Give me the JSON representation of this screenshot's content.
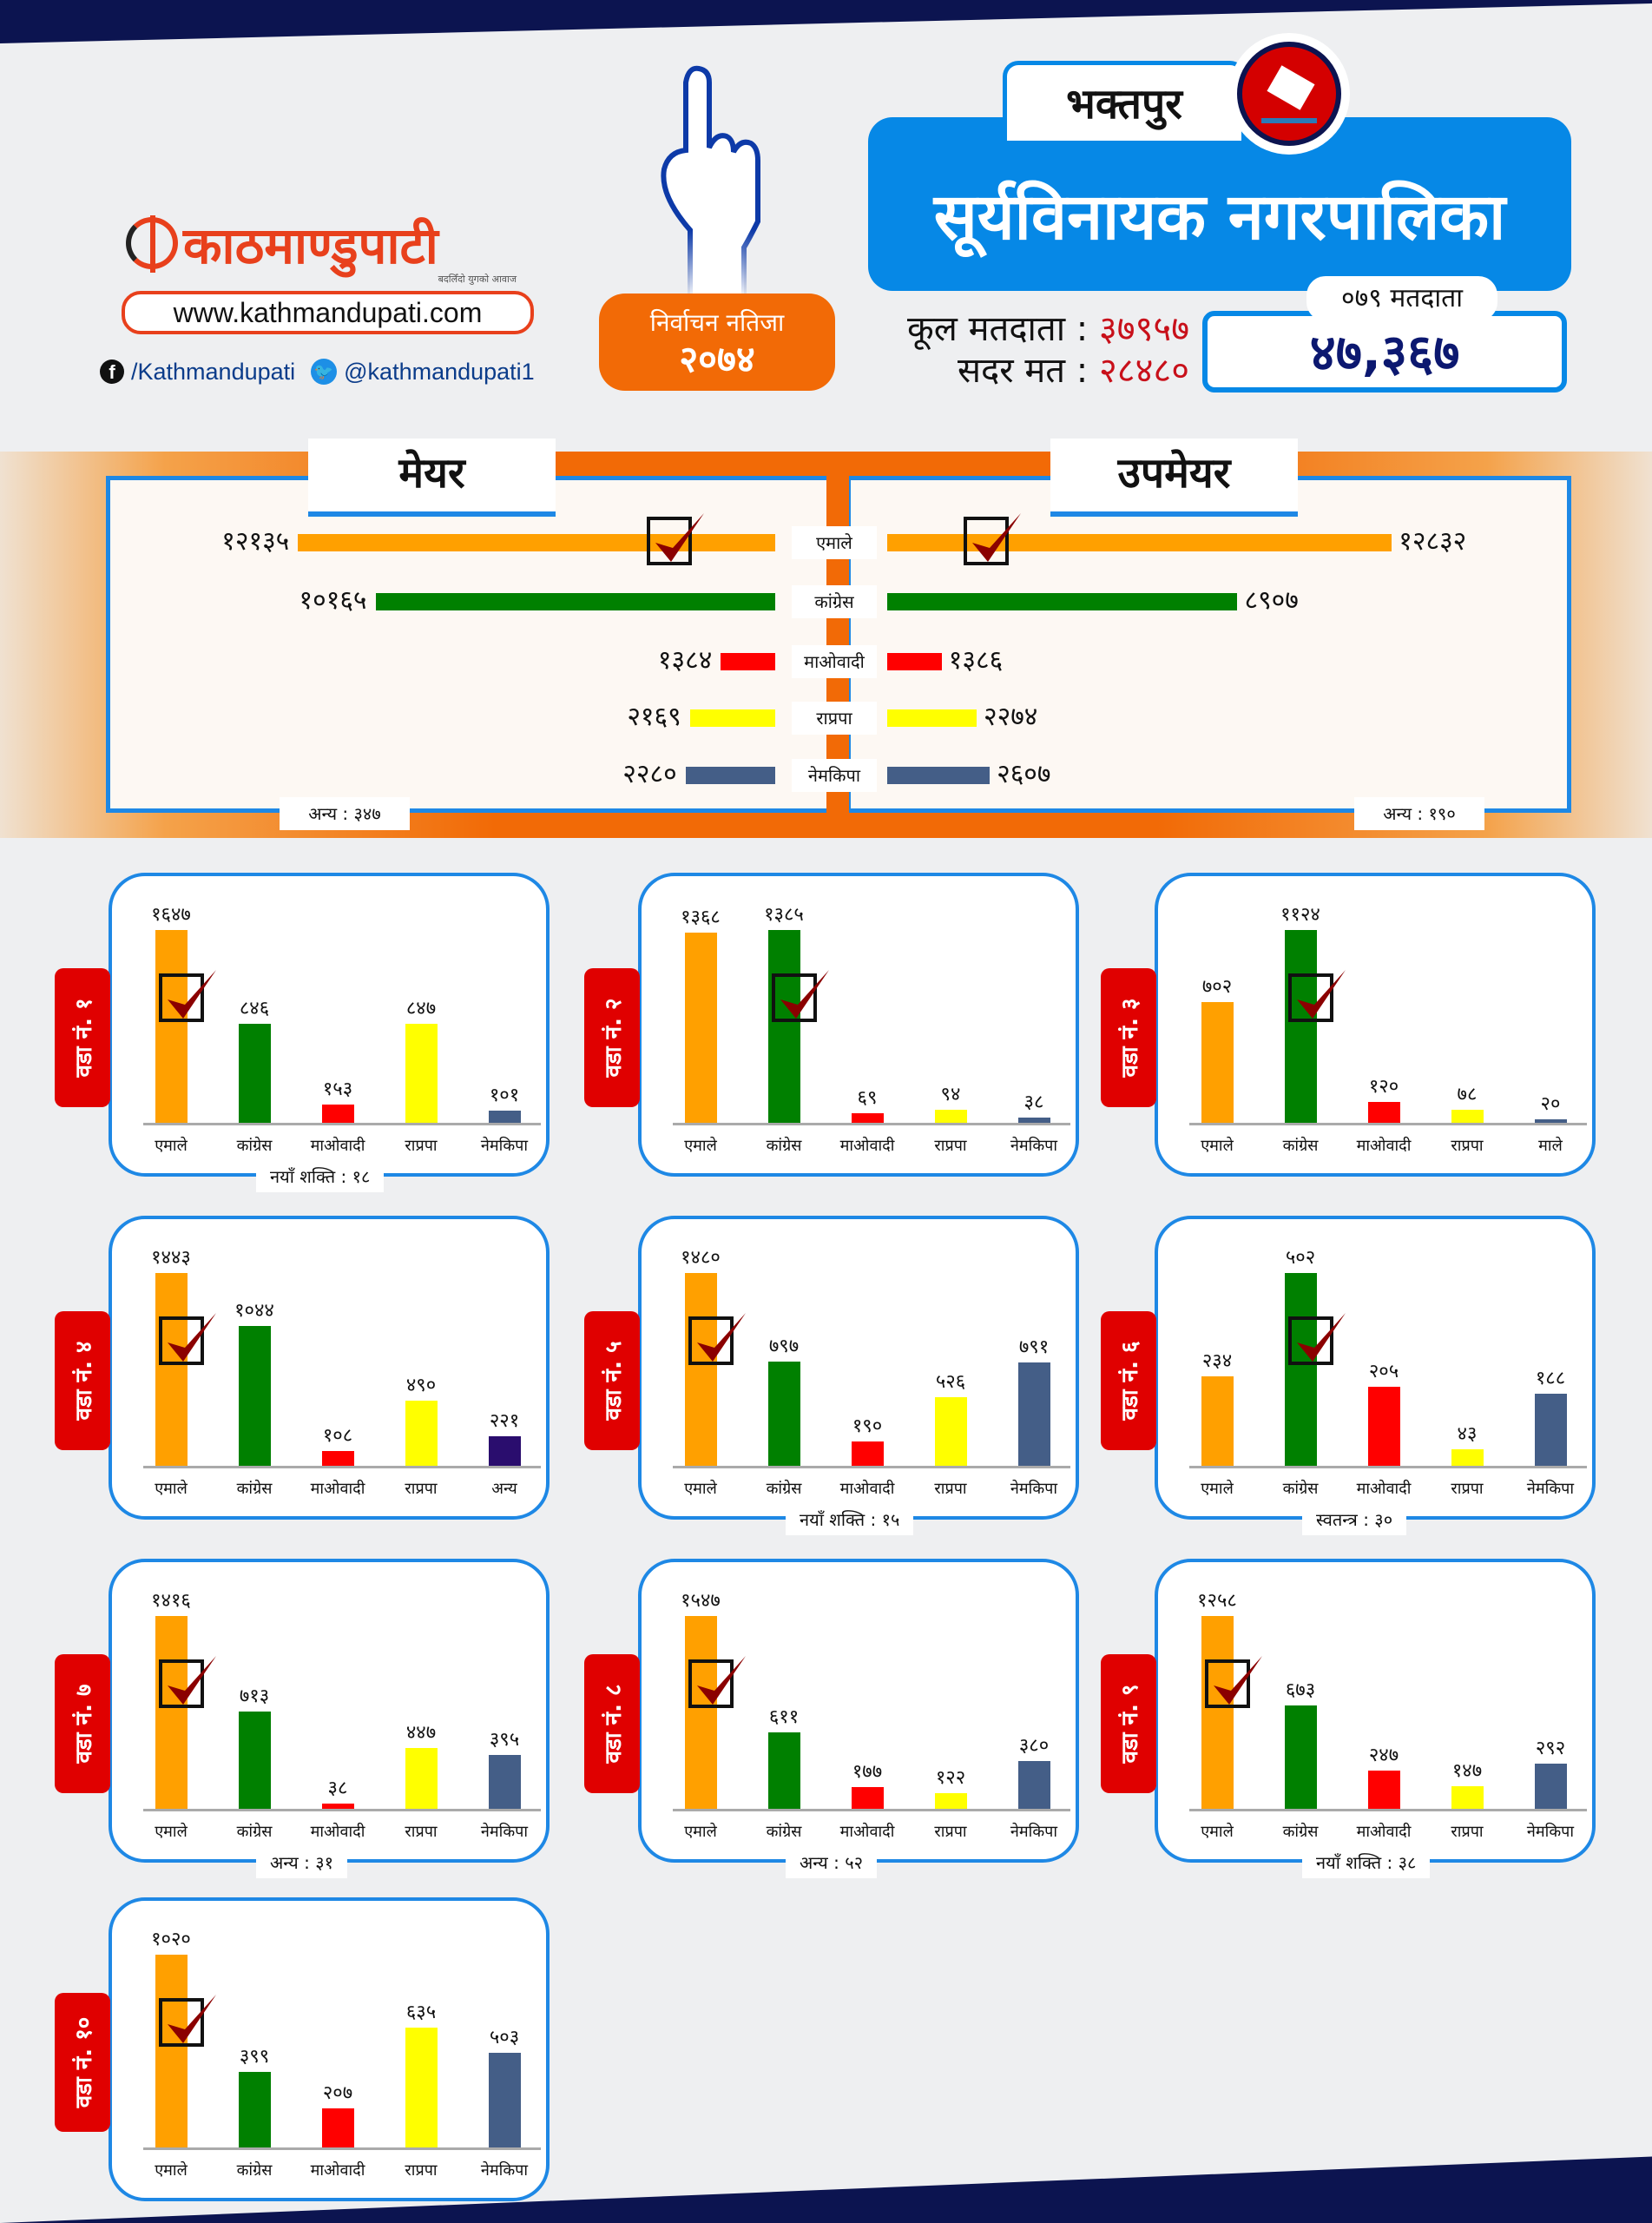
{
  "header": {
    "logo_text": "काठमाण्डुपाटी",
    "logo_tagline": "बदलिँदो युगको आवाज",
    "url": "www.kathmandupati.com",
    "facebook": "/Kathmandupati",
    "twitter": "@kathmandupati1",
    "badge_title": "निर्वाचन नतिजा",
    "badge_year": "२०७४",
    "district": "भक्तपुर",
    "municipality": "सूर्यविनायक नगरपालिका",
    "total_voters_label": "कूल मतदाता :",
    "total_voters": "३७९५७",
    "valid_votes_label": "सदर मत :",
    "valid_votes": "२८४८०",
    "voters_079_label": "०७९ मतदाता",
    "voters_079": "४७,३६७",
    "icons": [
      "hand-vote-icon",
      "ballot-box-icon",
      "facebook-icon",
      "twitter-icon"
    ]
  },
  "colors": {
    "एमाले": "#ffa000",
    "कांग्रेस": "#008000",
    "माओवादी": "#ff0000",
    "राप्रपा": "#ffff00",
    "नेमकिपा": "#445e87",
    "माले": "#445e87",
    "अन्य": "#2a0d6e",
    "accent_blue": "#0688e6",
    "accent_orange": "#f26a06",
    "ward_tab_red": "#e00000"
  },
  "chart_data": [
    {
      "type": "bar",
      "orientation": "horizontal-mirrored",
      "categories": [
        "एमाले",
        "कांग्रेस",
        "माओवादी",
        "राप्रपा",
        "नेमकिपा"
      ],
      "series": [
        {
          "name": "मेयर",
          "values": [
            12135,
            10165,
            1384,
            2169,
            2280
          ],
          "winner": 0,
          "other": "अन्य : ३४७"
        },
        {
          "name": "उपमेयर",
          "values": [
            12832,
            8907,
            1386,
            2274,
            2607
          ],
          "winner": 0,
          "other": "अन्य : १९०"
        }
      ]
    },
    {
      "type": "bar",
      "title": "वडा नं. १",
      "categories": [
        "एमाले",
        "कांग्रेस",
        "माओवादी",
        "राप्रपा",
        "नेमकिपा"
      ],
      "values": [
        1647,
        846,
        153,
        847,
        101
      ],
      "winner": 0,
      "footnote": "नयाँ शक्ति : १८"
    },
    {
      "type": "bar",
      "title": "वडा नं. २",
      "categories": [
        "एमाले",
        "कांग्रेस",
        "माओवादी",
        "राप्रपा",
        "नेमकिपा"
      ],
      "values": [
        1368,
        1385,
        69,
        94,
        38
      ],
      "winner": 1,
      "footnote": ""
    },
    {
      "type": "bar",
      "title": "वडा नं. ३",
      "categories": [
        "एमाले",
        "कांग्रेस",
        "माओवादी",
        "राप्रपा",
        "माले"
      ],
      "values": [
        702,
        1124,
        120,
        78,
        20
      ],
      "winner": 1,
      "footnote": ""
    },
    {
      "type": "bar",
      "title": "वडा नं. ४",
      "categories": [
        "एमाले",
        "कांग्रेस",
        "माओवादी",
        "राप्रपा",
        "अन्य"
      ],
      "values": [
        1443,
        1044,
        108,
        490,
        221
      ],
      "winner": 0,
      "footnote": ""
    },
    {
      "type": "bar",
      "title": "वडा नं. ५",
      "categories": [
        "एमाले",
        "कांग्रेस",
        "माओवादी",
        "राप्रपा",
        "नेमकिपा"
      ],
      "values": [
        1480,
        797,
        190,
        526,
        791
      ],
      "winner": 0,
      "footnote": "नयाँ शक्ति : १५"
    },
    {
      "type": "bar",
      "title": "वडा नं. ६",
      "categories": [
        "एमाले",
        "कांग्रेस",
        "माओवादी",
        "राप्रपा",
        "नेमकिपा"
      ],
      "values": [
        234,
        502,
        205,
        43,
        188
      ],
      "winner": 1,
      "footnote": "स्वतन्त्र : ३०"
    },
    {
      "type": "bar",
      "title": "वडा नं. ७",
      "categories": [
        "एमाले",
        "कांग्रेस",
        "माओवादी",
        "राप्रपा",
        "नेमकिपा"
      ],
      "values": [
        1416,
        713,
        38,
        447,
        395
      ],
      "winner": 0,
      "footnote": "अन्य : ३१"
    },
    {
      "type": "bar",
      "title": "वडा नं. ८",
      "categories": [
        "एमाले",
        "कांग्रेस",
        "माओवादी",
        "राप्रपा",
        "नेमकिपा"
      ],
      "values": [
        1547,
        611,
        177,
        122,
        380
      ],
      "winner": 0,
      "footnote": "अन्य : ५२"
    },
    {
      "type": "bar",
      "title": "वडा नं. ९",
      "categories": [
        "एमाले",
        "कांग्रेस",
        "माओवादी",
        "राप्रपा",
        "नेमकिपा"
      ],
      "values": [
        1258,
        673,
        247,
        147,
        292
      ],
      "winner": 0,
      "footnote": "नयाँ शक्ति : ३८"
    },
    {
      "type": "bar",
      "title": "वडा नं. १०",
      "categories": [
        "एमाले",
        "कांग्रेस",
        "माओवादी",
        "राप्रपा",
        "नेमकिपा"
      ],
      "values": [
        1020,
        399,
        207,
        635,
        503
      ],
      "winner": 0,
      "footnote": ""
    }
  ]
}
